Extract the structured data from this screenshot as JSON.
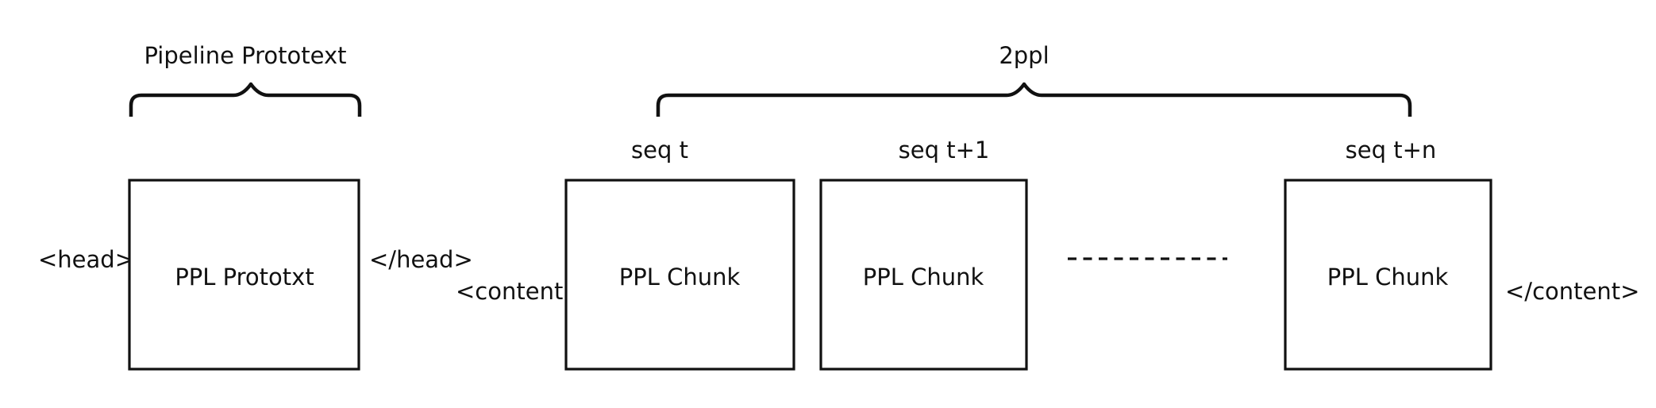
{
  "diagram": {
    "head_group": {
      "brace_label": "Pipeline Prototext",
      "open_tag": "<head>",
      "close_tag": "</head>",
      "box_label": "PPL Prototxt"
    },
    "content_group": {
      "brace_label": "2ppl",
      "open_tag": "<content>",
      "close_tag": "</content>",
      "chunks": [
        {
          "seq_label": "seq t",
          "box_label": "PPL Chunk"
        },
        {
          "seq_label": "seq t+1",
          "box_label": "PPL Chunk"
        },
        {
          "seq_label": "seq t+n",
          "box_label": "PPL Chunk"
        }
      ]
    }
  }
}
